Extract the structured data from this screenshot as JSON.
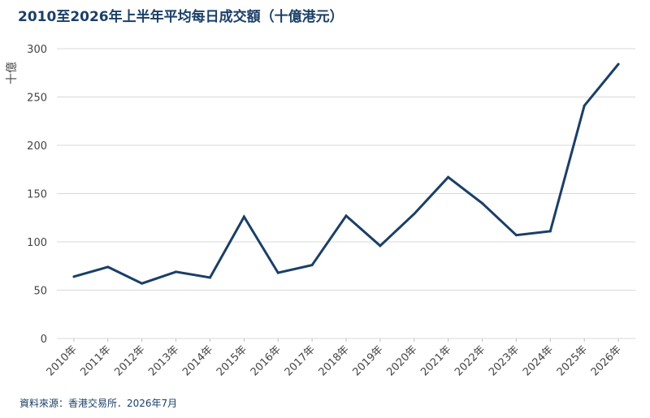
{
  "chart_data": {
    "type": "line",
    "title": "2010至2026年上半年平均每日成交額（十億港元）",
    "ylabel": "十億",
    "xlabel": "",
    "categories": [
      "2010年",
      "2011年",
      "2012年",
      "2013年",
      "2014年",
      "2015年",
      "2016年",
      "2017年",
      "2018年",
      "2019年",
      "2020年",
      "2021年",
      "2022年",
      "2023年",
      "2024年",
      "2025年",
      "2026年"
    ],
    "series": [
      {
        "values": [
          64,
          74,
          57,
          69,
          63,
          126,
          68,
          76,
          127,
          96,
          129,
          167,
          140,
          107,
          111,
          241,
          284
        ],
        "color": "#1b3f66"
      }
    ],
    "yticks": [
      0,
      50,
      100,
      150,
      200,
      250,
      300
    ],
    "ylim": [
      0,
      300
    ],
    "grid": true,
    "legend": "none",
    "source": "資料來源：香港交易所．2026年7月"
  }
}
